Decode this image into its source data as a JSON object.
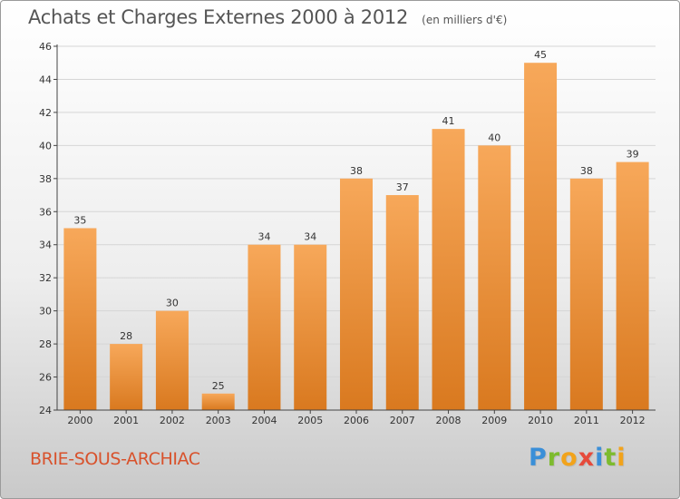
{
  "title": "Achats et Charges Externes 2000 à 2012",
  "subtitle": "(en milliers d'€)",
  "commune": "BRIE-SOUS-ARCHIAC",
  "brand": {
    "text": "Proxiti",
    "letter_colors": [
      "#3a8fd8",
      "#7dbb2e",
      "#f2a31b",
      "#e64a3b",
      "#3a8fd8",
      "#7dbb2e",
      "#f2a31b"
    ]
  },
  "colors": {
    "bar_top": "#f7a85a",
    "bar_bottom": "#d9791f",
    "axis": "#444444",
    "grid": "#d6d6d6",
    "commune": "#d8522c"
  },
  "chart_data": {
    "type": "bar",
    "categories": [
      "2000",
      "2001",
      "2002",
      "2003",
      "2004",
      "2005",
      "2006",
      "2007",
      "2008",
      "2009",
      "2010",
      "2011",
      "2012"
    ],
    "values": [
      35,
      28,
      30,
      25,
      34,
      34,
      38,
      37,
      41,
      40,
      45,
      38,
      39
    ],
    "value_labels": [
      "35",
      "28",
      "30",
      "25",
      "34",
      "34",
      "38",
      "37",
      "41",
      "40",
      "45",
      "38",
      "39"
    ],
    "ylim": [
      24,
      46
    ],
    "yticks": [
      24,
      26,
      28,
      30,
      32,
      34,
      36,
      38,
      40,
      42,
      44,
      46
    ],
    "ytick_labels": [
      "24",
      "26",
      "28",
      "30",
      "32",
      "34",
      "36",
      "38",
      "40",
      "42",
      "44",
      "46"
    ],
    "grid": true,
    "xlabel": "",
    "ylabel": ""
  }
}
